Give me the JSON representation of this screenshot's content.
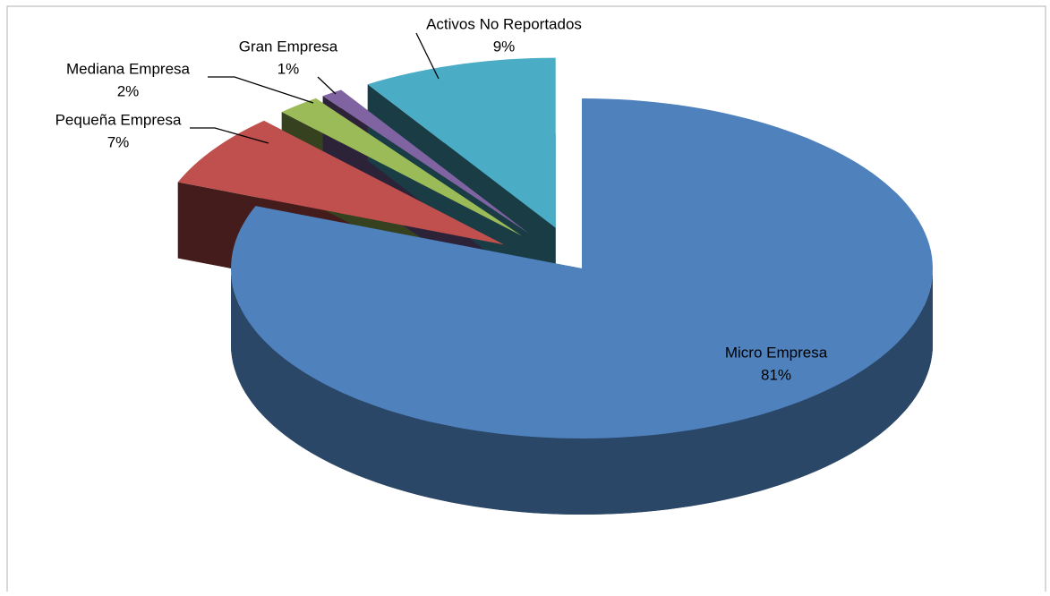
{
  "chart_data": {
    "type": "pie",
    "categories": [
      "Micro Empresa",
      "Pequeña Empresa",
      "Mediana Empresa",
      "Gran Empresa",
      "Activos No Reportados"
    ],
    "values": [
      81,
      7,
      2,
      1,
      9
    ],
    "value_labels": [
      "81%",
      "7%",
      "2%",
      "1%",
      "9%"
    ],
    "colors": [
      "#4f81bd",
      "#c0504d",
      "#9bbb59",
      "#8064a2",
      "#4bacc6"
    ]
  }
}
